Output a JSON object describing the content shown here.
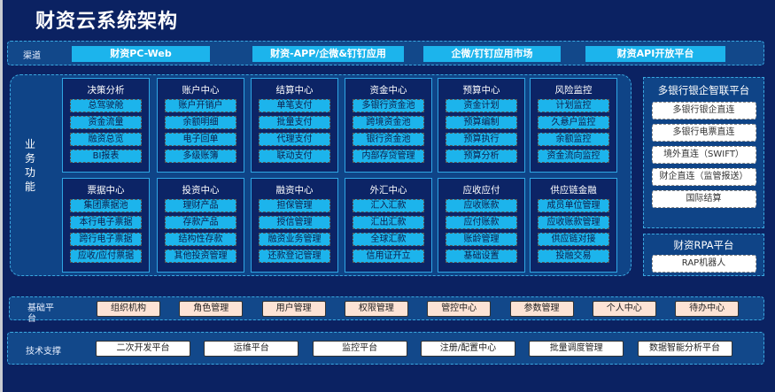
{
  "title": "财资云系统架构",
  "channel": {
    "label": "渠道",
    "items": [
      "财资PC-Web",
      "财资-APP/企微&钉钉应用",
      "企微/钉钉应用市场",
      "财资API开放平台"
    ]
  },
  "business": {
    "label": "业务功能",
    "modules": [
      {
        "title": "决策分析",
        "items": [
          "总驾驶舱",
          "资金流量",
          "融资总览",
          "BI报表"
        ]
      },
      {
        "title": "账户中心",
        "items": [
          "账户开销户",
          "余额明细",
          "电子回单",
          "多级账簿"
        ]
      },
      {
        "title": "结算中心",
        "items": [
          "单笔支付",
          "批量支付",
          "代理支付",
          "联动支付"
        ]
      },
      {
        "title": "资金中心",
        "items": [
          "多银行资金池",
          "跨境资金池",
          "银行资金池",
          "内部存贷管理"
        ]
      },
      {
        "title": "预算中心",
        "items": [
          "资金计划",
          "预算编制",
          "预算执行",
          "预算分析"
        ]
      },
      {
        "title": "风险监控",
        "items": [
          "计划监控",
          "久悬户监控",
          "余额监控",
          "资金流向监控"
        ]
      },
      {
        "title": "票据中心",
        "items": [
          "集团票据池",
          "本行电子票据",
          "跨行电子票据",
          "应收/应付票据"
        ]
      },
      {
        "title": "投资中心",
        "items": [
          "理财产品",
          "存款产品",
          "结构性存款",
          "其他投资管理"
        ]
      },
      {
        "title": "融资中心",
        "items": [
          "担保管理",
          "授信管理",
          "融资业务管理",
          "还款登记管理"
        ]
      },
      {
        "title": "外汇中心",
        "items": [
          "汇入汇款",
          "汇出汇款",
          "全球汇款",
          "信用证开立"
        ]
      },
      {
        "title": "应收应付",
        "items": [
          "应收账款",
          "应付账款",
          "账龄管理",
          "基础设置"
        ]
      },
      {
        "title": "供应链金融",
        "items": [
          "成员单位管理",
          "应收账款管理",
          "供应链对接",
          "投融交易"
        ]
      }
    ]
  },
  "bank_platform": {
    "title": "多银行银企智联平台",
    "items": [
      "多银行银企直连",
      "多银行电票直连",
      "境外直连（SWIFT）",
      "财企直连（监管报送）",
      "国际结算"
    ]
  },
  "rpa_platform": {
    "title": "财资RPA平台",
    "items": [
      "RAP机器人"
    ]
  },
  "base_platform": {
    "label": "基础平台",
    "items": [
      "组织机构",
      "角色管理",
      "用户管理",
      "权限管理",
      "管控中心",
      "参数管理",
      "个人中心",
      "待办中心"
    ]
  },
  "tech_support": {
    "label": "技术支撑",
    "items": [
      "二次开发平台",
      "运维平台",
      "监控平台",
      "注册/配置中心",
      "批量调度管理",
      "数据智能分析平台"
    ]
  },
  "colors": {
    "background": "#0b2262",
    "item": "#1cb4ec",
    "base_item": "#fde3d5"
  }
}
